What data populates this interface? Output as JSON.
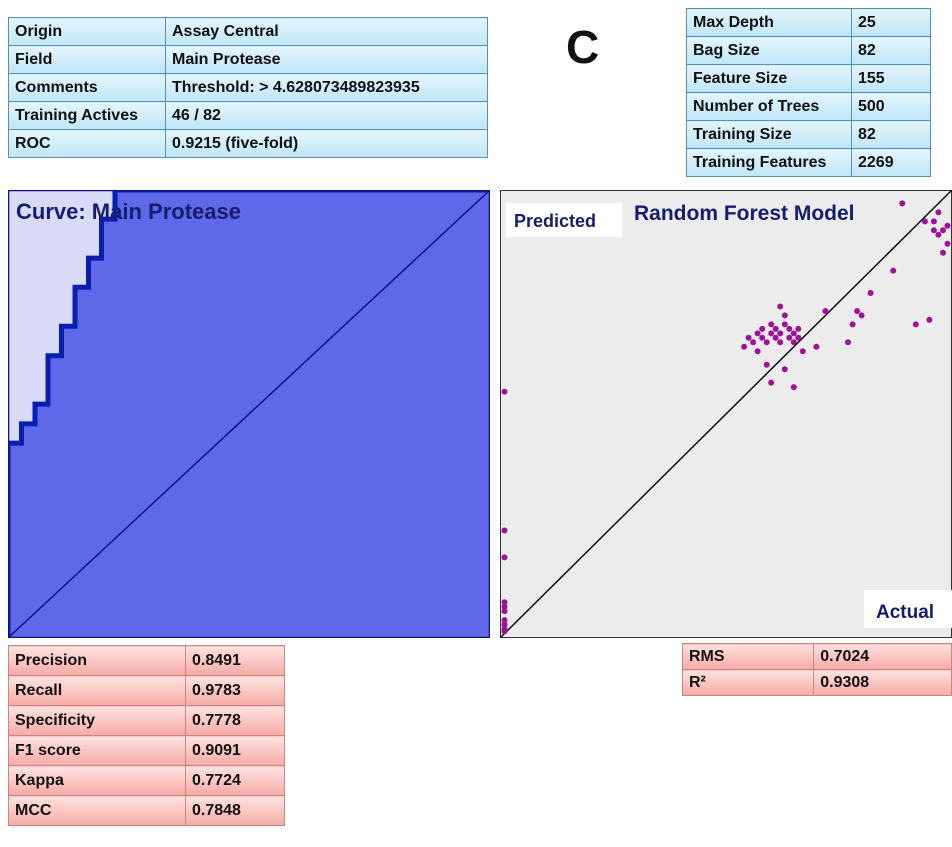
{
  "panel_label": "C",
  "info_table": [
    {
      "key": "Origin",
      "value": "Assay Central"
    },
    {
      "key": "Field",
      "value": "Main Protease"
    },
    {
      "key": "Comments",
      "value": "Threshold: > 4.628073489823935"
    },
    {
      "key": "Training Actives",
      "value": "46 / 82"
    },
    {
      "key": "ROC",
      "value": "0.9215 (five-fold)"
    }
  ],
  "params_table": [
    {
      "key": "Max Depth",
      "value": "25"
    },
    {
      "key": "Bag Size",
      "value": "82"
    },
    {
      "key": "Feature Size",
      "value": "155"
    },
    {
      "key": "Number of Trees",
      "value": "500"
    },
    {
      "key": "Training Size",
      "value": "82"
    },
    {
      "key": "Training Features",
      "value": "2269"
    }
  ],
  "metrics_table": [
    {
      "key": "Precision",
      "value": "0.8491"
    },
    {
      "key": "Recall",
      "value": "0.9783"
    },
    {
      "key": "Specificity",
      "value": "0.7778"
    },
    {
      "key": "F1 score",
      "value": "0.9091"
    },
    {
      "key": "Kappa",
      "value": "0.7724"
    },
    {
      "key": "MCC",
      "value": "0.7848"
    }
  ],
  "regression_table": [
    {
      "key": "RMS",
      "value": "0.7024"
    },
    {
      "key": "R²",
      "value": "0.9308"
    }
  ],
  "colors": {
    "roc_fill": "#6068ea",
    "roc_upper": "#d8daf8",
    "roc_line": "#0a1fb0",
    "scatter_bg": "#ececec",
    "scatter_point": "#a0119a"
  },
  "chart_data": [
    {
      "type": "area",
      "title": "Curve: Main Protease",
      "xlim": [
        0,
        1
      ],
      "ylim": [
        0,
        1
      ],
      "roc_auc": 0.9215,
      "diagonal": true,
      "x": [
        0,
        0,
        0.028,
        0.028,
        0.056,
        0.056,
        0.083,
        0.083,
        0.111,
        0.111,
        0.139,
        0.139,
        0.167,
        0.167,
        0.194,
        0.194,
        0.222,
        0.222,
        1
      ],
      "y": [
        0,
        0.435,
        0.435,
        0.478,
        0.478,
        0.522,
        0.522,
        0.63,
        0.63,
        0.696,
        0.696,
        0.783,
        0.783,
        0.848,
        0.848,
        0.935,
        0.935,
        1,
        1
      ]
    },
    {
      "type": "scatter",
      "title": "Random Forest Model",
      "xlabel": "Actual",
      "ylabel": "Predicted",
      "xlim": [
        0,
        1
      ],
      "ylim": [
        0,
        1
      ],
      "diagonal": true,
      "x": [
        0.01,
        0.01,
        0.01,
        0.01,
        0.01,
        0.01,
        0.01,
        0.01,
        0.01,
        0.01,
        0.54,
        0.55,
        0.56,
        0.57,
        0.57,
        0.58,
        0.58,
        0.59,
        0.6,
        0.6,
        0.61,
        0.61,
        0.62,
        0.62,
        0.63,
        0.63,
        0.64,
        0.64,
        0.65,
        0.65,
        0.66,
        0.66,
        0.62,
        0.59,
        0.6,
        0.63,
        0.65,
        0.67,
        0.7,
        0.72,
        0.77,
        0.78,
        0.79,
        0.8,
        0.82,
        0.87,
        0.92,
        0.95,
        0.96,
        0.96,
        0.97,
        0.98,
        0.99,
        0.99,
        0.98,
        0.97,
        0.94,
        0.89
      ],
      "y": [
        0.55,
        0.24,
        0.18,
        0.08,
        0.07,
        0.06,
        0.04,
        0.03,
        0.02,
        0.015,
        0.65,
        0.67,
        0.66,
        0.68,
        0.64,
        0.67,
        0.69,
        0.66,
        0.68,
        0.7,
        0.67,
        0.69,
        0.66,
        0.68,
        0.7,
        0.72,
        0.67,
        0.69,
        0.66,
        0.68,
        0.67,
        0.69,
        0.74,
        0.61,
        0.57,
        0.6,
        0.56,
        0.64,
        0.65,
        0.73,
        0.66,
        0.7,
        0.73,
        0.72,
        0.77,
        0.82,
        0.7,
        0.71,
        0.93,
        0.91,
        0.9,
        0.91,
        0.92,
        0.88,
        0.86,
        0.95,
        0.93,
        0.97
      ]
    }
  ]
}
